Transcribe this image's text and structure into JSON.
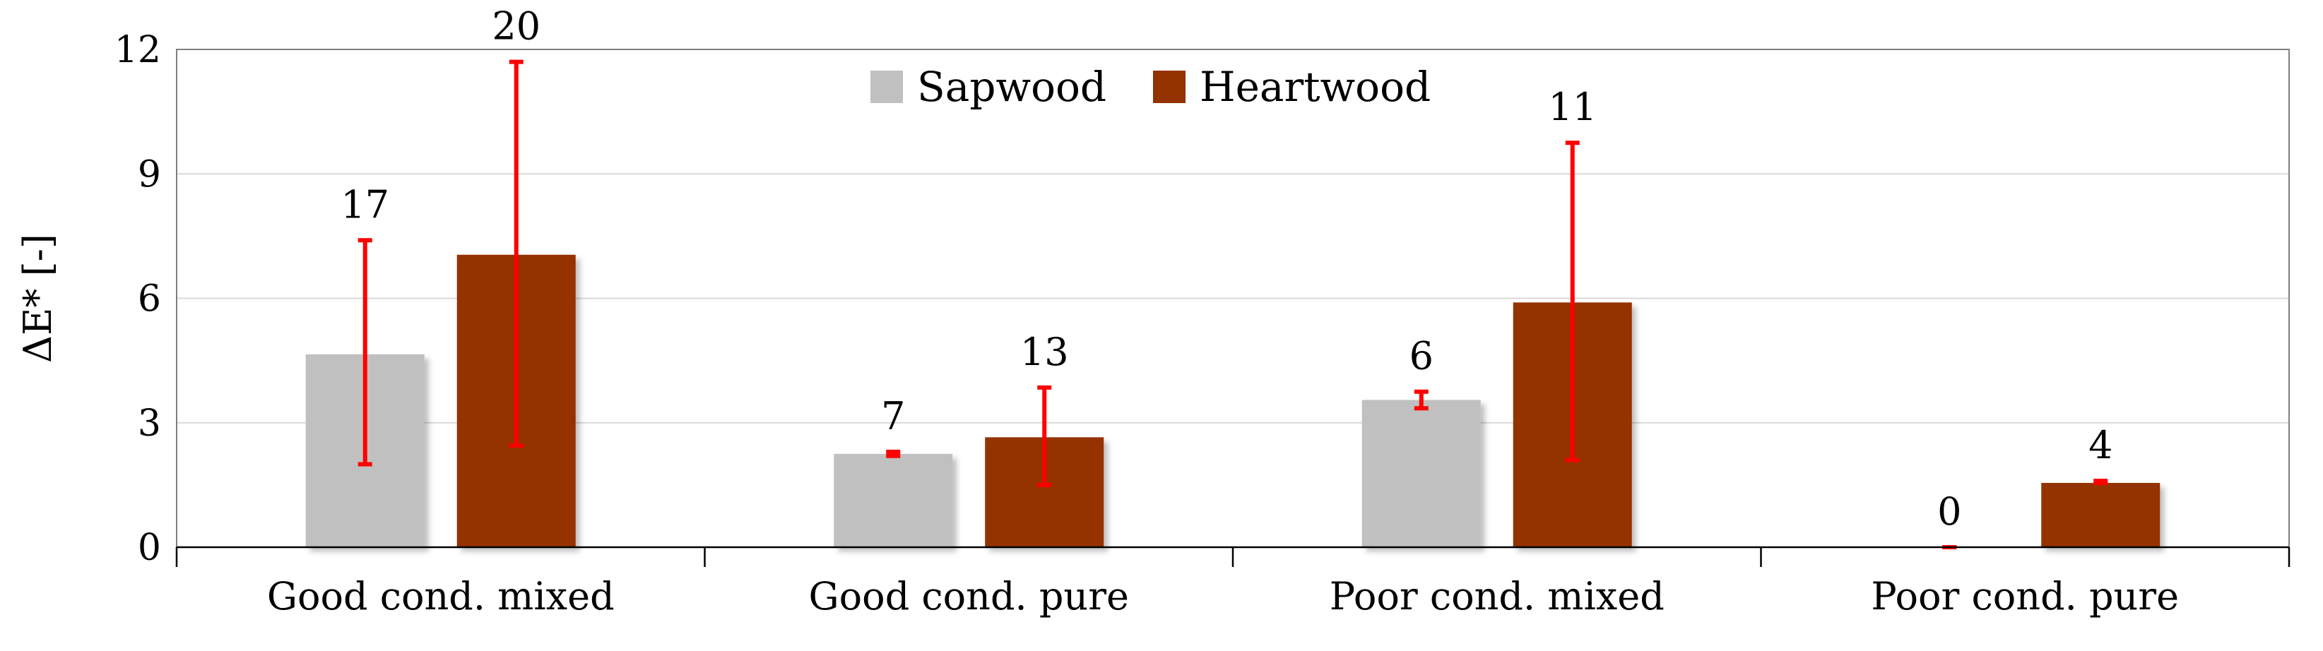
{
  "chart_data": {
    "type": "bar",
    "title": "",
    "xlabel": "",
    "ylabel": "ΔE* [-]",
    "ylim": [
      0,
      12
    ],
    "yticks": [
      0,
      3,
      6,
      9,
      12
    ],
    "grid": true,
    "legend_position": "top-center",
    "categories": [
      "Good cond. mixed",
      "Good cond. pure",
      "Poor cond. mixed",
      "Poor cond. pure"
    ],
    "series": [
      {
        "name": "Sapwood",
        "color": "#c0c0c0",
        "values": [
          4.65,
          2.25,
          3.55,
          0
        ],
        "error_low": [
          2.0,
          2.2,
          3.35,
          0
        ],
        "error_high": [
          7.4,
          2.3,
          3.75,
          0
        ],
        "labels": [
          "17",
          "7",
          "6",
          "0"
        ]
      },
      {
        "name": "Heartwood",
        "color": "#943200",
        "values": [
          7.05,
          2.65,
          5.9,
          1.55
        ],
        "error_low": [
          2.45,
          1.5,
          2.1,
          1.55
        ],
        "error_high": [
          11.7,
          3.85,
          9.75,
          1.6
        ],
        "labels": [
          "20",
          "13",
          "11",
          "4"
        ]
      }
    ],
    "error_bar_color": "#ff0000"
  }
}
